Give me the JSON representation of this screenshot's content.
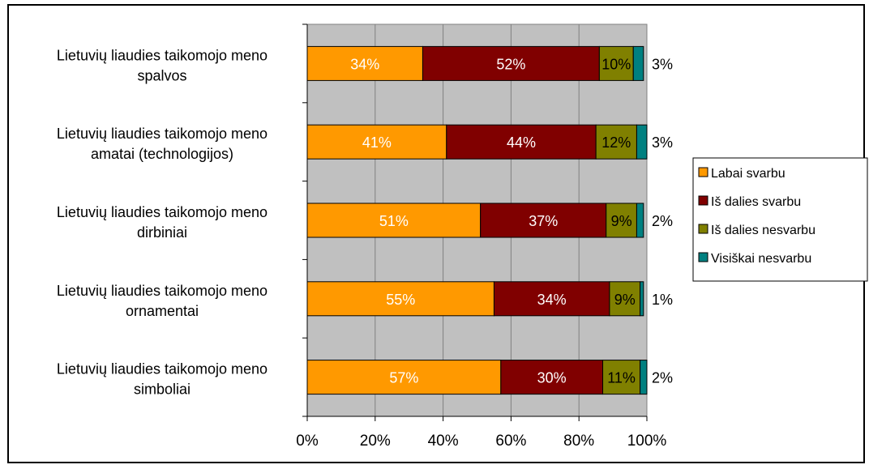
{
  "chart_data": {
    "type": "bar",
    "orientation": "horizontal",
    "stacked": "percent",
    "title": "",
    "xlabel": "",
    "ylabel": "",
    "xlim": [
      0,
      100
    ],
    "x_ticks": [
      "0%",
      "20%",
      "40%",
      "60%",
      "80%",
      "100%"
    ],
    "grid": true,
    "legend_position": "right",
    "categories": [
      [
        "Lietuvių liaudies taikomojo meno",
        "spalvos"
      ],
      [
        "Lietuvių liaudies taikomojo meno",
        "amatai (technologijos)"
      ],
      [
        "Lietuvių liaudies taikomojo meno",
        "dirbiniai"
      ],
      [
        "Lietuvių liaudies taikomojo meno",
        "ornamentai"
      ],
      [
        "Lietuvių liaudies taikomojo meno",
        "simboliai"
      ]
    ],
    "series": [
      {
        "name": "Labai svarbu",
        "color": "#ff9900",
        "label_color": "#ffffff",
        "values": [
          34,
          41,
          51,
          55,
          57
        ],
        "labels": [
          "34%",
          "41%",
          "51%",
          "55%",
          "57%"
        ]
      },
      {
        "name": "Iš dalies svarbu",
        "color": "#800000",
        "label_color": "#ffffff",
        "values": [
          52,
          44,
          37,
          34,
          30
        ],
        "labels": [
          "52%",
          "44%",
          "37%",
          "34%",
          "30%"
        ]
      },
      {
        "name": "Iš dalies nesvarbu",
        "color": "#808000",
        "label_color": "#000000",
        "values": [
          10,
          12,
          9,
          9,
          11
        ],
        "labels": [
          "10%",
          "12%",
          "9%",
          "9%",
          "11%"
        ]
      },
      {
        "name": "Visiškai nesvarbu",
        "color": "#008080",
        "label_color": "#000000",
        "values": [
          3,
          3,
          2,
          1,
          2
        ],
        "labels": [
          "3%",
          "3%",
          "2%",
          "1%",
          "2%"
        ]
      }
    ],
    "plot_background": "#c0c0c0"
  }
}
